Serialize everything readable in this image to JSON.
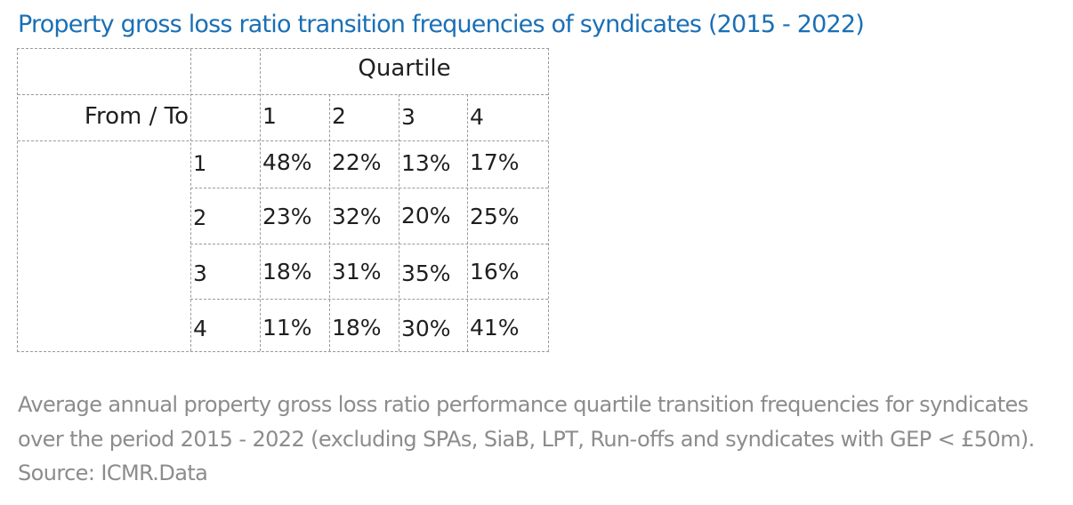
{
  "title": "Property gross loss ratio transition frequencies of syndicates (2015 - 2022)",
  "table": {
    "group_header": "Quartile",
    "row_col_header": "From / To",
    "to_quartiles": [
      "1",
      "2",
      "3",
      "4"
    ],
    "rows": [
      {
        "from": "1",
        "values": [
          "48%",
          "22%",
          "13%",
          "17%"
        ]
      },
      {
        "from": "2",
        "values": [
          "23%",
          "32%",
          "20%",
          "25%"
        ]
      },
      {
        "from": "3",
        "values": [
          "18%",
          "31%",
          "35%",
          "16%"
        ]
      },
      {
        "from": "4",
        "values": [
          "11%",
          "18%",
          "30%",
          "41%"
        ]
      }
    ]
  },
  "caption": "Average annual property gross loss ratio performance quartile transition frequencies for syndicates over the period 2015 - 2022 (excluding SPAs, SiaB, LPT, Run-offs and syndicates with GEP < £50m). Source: ICMR.Data",
  "colors": {
    "title": "#1a6fb5",
    "text": "#1f1f1f",
    "caption": "#8c8c8c",
    "grid_lines": "#9a9a9a"
  }
}
